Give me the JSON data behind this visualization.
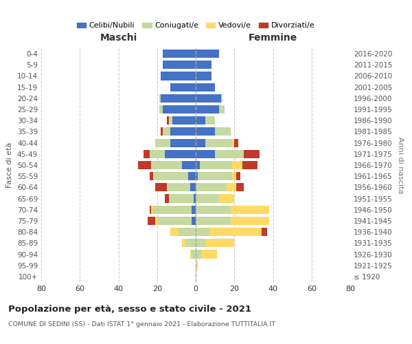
{
  "age_groups": [
    "100+",
    "95-99",
    "90-94",
    "85-89",
    "80-84",
    "75-79",
    "70-74",
    "65-69",
    "60-64",
    "55-59",
    "50-54",
    "45-49",
    "40-44",
    "35-39",
    "30-34",
    "25-29",
    "20-24",
    "15-19",
    "10-14",
    "5-9",
    "0-4"
  ],
  "birth_years": [
    "≤ 1920",
    "1921-1925",
    "1926-1930",
    "1931-1935",
    "1936-1940",
    "1941-1945",
    "1946-1950",
    "1951-1955",
    "1956-1960",
    "1961-1965",
    "1966-1970",
    "1971-1975",
    "1976-1980",
    "1981-1985",
    "1986-1990",
    "1991-1995",
    "1996-2000",
    "2001-2005",
    "2006-2010",
    "2011-2015",
    "2016-2020"
  ],
  "maschi": {
    "celibi": [
      0,
      0,
      0,
      0,
      0,
      2,
      2,
      1,
      3,
      4,
      7,
      16,
      13,
      13,
      12,
      17,
      18,
      13,
      18,
      17,
      17
    ],
    "coniugati": [
      0,
      0,
      2,
      5,
      9,
      18,
      20,
      13,
      12,
      18,
      16,
      8,
      8,
      4,
      2,
      2,
      1,
      0,
      0,
      0,
      0
    ],
    "vedovi": [
      0,
      0,
      1,
      2,
      4,
      1,
      1,
      0,
      0,
      0,
      0,
      0,
      0,
      0,
      0,
      0,
      0,
      0,
      0,
      0,
      0
    ],
    "divorziati": [
      0,
      0,
      0,
      0,
      0,
      4,
      1,
      2,
      6,
      2,
      7,
      3,
      0,
      1,
      1,
      0,
      0,
      0,
      0,
      0,
      0
    ]
  },
  "femmine": {
    "nubili": [
      0,
      0,
      0,
      0,
      0,
      0,
      0,
      0,
      0,
      1,
      2,
      10,
      5,
      10,
      5,
      12,
      13,
      10,
      8,
      8,
      12
    ],
    "coniugate": [
      0,
      0,
      3,
      5,
      7,
      18,
      18,
      12,
      16,
      18,
      17,
      15,
      14,
      8,
      5,
      3,
      1,
      0,
      0,
      0,
      0
    ],
    "vedove": [
      0,
      1,
      8,
      15,
      27,
      20,
      20,
      8,
      5,
      2,
      5,
      0,
      1,
      0,
      0,
      0,
      0,
      0,
      0,
      0,
      0
    ],
    "divorziate": [
      0,
      0,
      0,
      0,
      3,
      0,
      0,
      0,
      4,
      2,
      8,
      8,
      2,
      0,
      0,
      0,
      0,
      0,
      0,
      0,
      0
    ]
  },
  "color_celibi": "#4472c4",
  "color_coniugati": "#c5d9a0",
  "color_vedovi": "#ffd966",
  "color_divorziati": "#c0392b",
  "title": "Popolazione per età, sesso e stato civile - 2021",
  "subtitle": "COMUNE DI SEDINI (SS) - Dati ISTAT 1° gennaio 2021 - Elaborazione TUTTITALIA.IT",
  "xlabel_maschi": "Maschi",
  "xlabel_femmine": "Femmine",
  "ylabel_left": "Fasce di età",
  "ylabel_right": "Anni di nascita",
  "xlim": 80,
  "legend_labels": [
    "Celibi/Nubili",
    "Coniugati/e",
    "Vedovi/e",
    "Divorziati/e"
  ]
}
